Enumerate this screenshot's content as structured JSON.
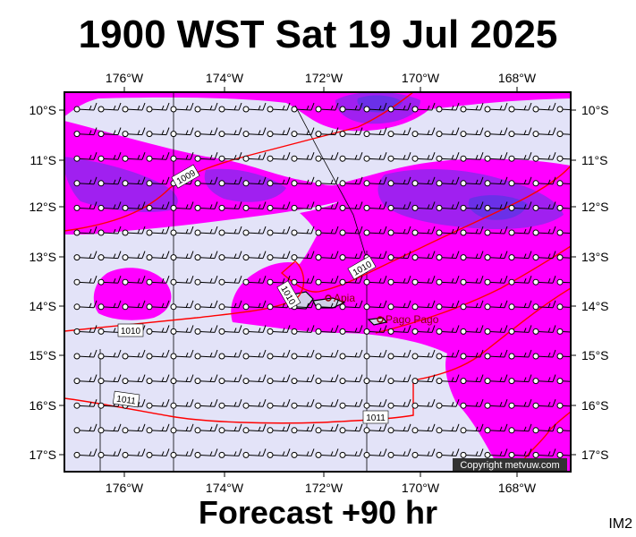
{
  "title": "1900 WST Sat 19 Jul 2025",
  "footer": "Forecast +90 hr",
  "code": "IM2",
  "copyright": "Copyright metvuw.com",
  "colors": {
    "background": "#e3e3f8",
    "magenta": "#ff00ff",
    "violet": "#a020f0",
    "blue": "#6a30e8",
    "isobar": "#ff0000",
    "frame": "#000000"
  },
  "lon_labels": [
    "176°W",
    "174°W",
    "172°W",
    "170°W",
    "168°W"
  ],
  "lat_labels": [
    "10°S",
    "11°S",
    "12°S",
    "13°S",
    "14°S",
    "15°S",
    "16°S",
    "17°S"
  ],
  "isobar_labels": [
    "1009",
    "1010",
    "1010",
    "1010",
    "1011",
    "1011"
  ],
  "places": [
    {
      "name": "Apia",
      "lon": -171.77,
      "lat": -13.83
    },
    {
      "name": "Pago Pago",
      "lon": -170.7,
      "lat": -14.28
    }
  ]
}
